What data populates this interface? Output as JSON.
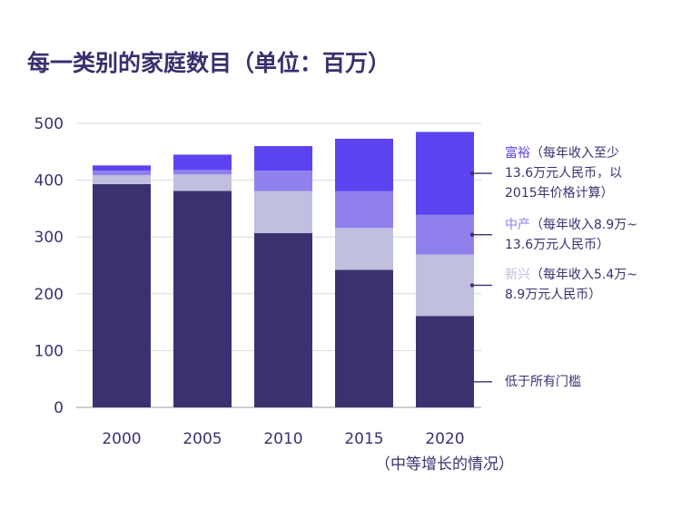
{
  "chart_data": {
    "type": "bar",
    "stacked": true,
    "title": "每一类别的家庭数目（单位：百万）",
    "categories": [
      "2000",
      "2005",
      "2010",
      "2015",
      "2020"
    ],
    "note": "（中等增长的情况）",
    "ylim": [
      0,
      500
    ],
    "yticks": [
      0,
      100,
      200,
      300,
      400,
      500
    ],
    "grid": true,
    "legend_position": "right",
    "series": [
      {
        "name": "低于所有门槛",
        "color": "#3c3170",
        "values": [
          393,
          381,
          307,
          242,
          161
        ]
      },
      {
        "name": "新兴（每年收入5.4万~8.9万元人民币）",
        "color": "#c0bfde",
        "values": [
          16,
          29,
          74,
          74,
          108
        ]
      },
      {
        "name": "中产（每年收入8.9万~13.6万元人民币）",
        "color": "#9080ee",
        "values": [
          8,
          8,
          36,
          65,
          70
        ]
      },
      {
        "name": "富裕（每年收入至少13.6万元人民币，以2015年价格计算）",
        "color": "#5b44ef",
        "values": [
          9,
          27,
          43,
          92,
          146
        ]
      }
    ],
    "legend": [
      {
        "series": 3,
        "label": "富裕（每年收入至少\n13.6万元人民币，以\n2015年价格计算）"
      },
      {
        "series": 2,
        "label": "中产（每年收入8.9万~\n13.6万元人民币）"
      },
      {
        "series": 1,
        "label": "新兴（每年收入5.4万~\n8.9万元人民币）"
      },
      {
        "series": 0,
        "label": "低于所有门槛"
      }
    ]
  }
}
